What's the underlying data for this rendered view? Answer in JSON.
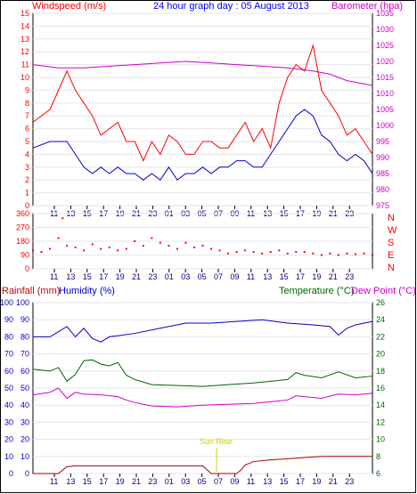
{
  "chart_data": [
    {
      "type": "line",
      "title": "24 hour graph day : 05 August 2013",
      "y_left_label": "Windspeed (m/s)",
      "y_right_label": "Barometer (hpa)",
      "y_left_ticks": [
        "0",
        "1",
        "2",
        "3",
        "4",
        "5",
        "6",
        "7",
        "8",
        "9",
        "10",
        "11",
        "12",
        "13",
        "14",
        "15"
      ],
      "y_right_ticks": [
        "975",
        "980",
        "985",
        "990",
        "995",
        "1000",
        "1005",
        "1010",
        "1015",
        "1020",
        "1025",
        "1030",
        "1035"
      ],
      "ylim_left": [
        0,
        15
      ],
      "ylim_right": [
        975,
        1035
      ],
      "x_ticks": [
        "11",
        "13",
        "15",
        "17",
        "19",
        "21",
        "23",
        "01",
        "03",
        "05",
        "07",
        "09",
        "11",
        "13",
        "15",
        "17",
        "19",
        "21",
        "23"
      ],
      "colors": {
        "gust": "#ff0000",
        "wind": "#0000cc",
        "barometer": "#cc00cc",
        "frame": "#000000"
      },
      "series": [
        {
          "name": "gust",
          "points": [
            [
              0,
              6.5
            ],
            [
              2,
              7.5
            ],
            [
              4,
              10.5
            ],
            [
              5,
              9
            ],
            [
              6,
              8
            ],
            [
              7,
              7
            ],
            [
              8,
              5.5
            ],
            [
              9,
              6
            ],
            [
              10,
              6.5
            ],
            [
              11,
              5
            ],
            [
              12,
              5
            ],
            [
              13,
              3.5
            ],
            [
              14,
              5
            ],
            [
              15,
              4
            ],
            [
              16,
              5.5
            ],
            [
              17,
              5
            ],
            [
              18,
              4
            ],
            [
              19,
              4
            ],
            [
              20,
              5
            ],
            [
              21,
              5
            ],
            [
              22,
              4.5
            ],
            [
              23,
              4.5
            ],
            [
              24,
              5.5
            ],
            [
              25,
              6.5
            ],
            [
              26,
              5
            ],
            [
              27,
              6
            ],
            [
              28,
              4.5
            ],
            [
              29,
              8
            ],
            [
              30,
              10
            ],
            [
              31,
              11
            ],
            [
              32,
              10.5
            ],
            [
              33,
              12.5
            ],
            [
              34,
              9
            ],
            [
              35,
              8
            ],
            [
              36,
              7
            ],
            [
              37,
              5.5
            ],
            [
              38,
              6
            ],
            [
              39,
              5
            ],
            [
              40,
              4
            ]
          ]
        },
        {
          "name": "wind",
          "points": [
            [
              0,
              4.5
            ],
            [
              2,
              5
            ],
            [
              4,
              5
            ],
            [
              5,
              4
            ],
            [
              6,
              3
            ],
            [
              7,
              2.5
            ],
            [
              8,
              3
            ],
            [
              9,
              2.5
            ],
            [
              10,
              3
            ],
            [
              11,
              2.5
            ],
            [
              12,
              2.5
            ],
            [
              13,
              2
            ],
            [
              14,
              2.5
            ],
            [
              15,
              2
            ],
            [
              16,
              3
            ],
            [
              17,
              2
            ],
            [
              18,
              2.5
            ],
            [
              19,
              2.5
            ],
            [
              20,
              3
            ],
            [
              21,
              2.5
            ],
            [
              22,
              3
            ],
            [
              23,
              3
            ],
            [
              24,
              3.5
            ],
            [
              25,
              3.5
            ],
            [
              26,
              3
            ],
            [
              27,
              3
            ],
            [
              28,
              4
            ],
            [
              29,
              5
            ],
            [
              30,
              6
            ],
            [
              31,
              7
            ],
            [
              32,
              7.5
            ],
            [
              33,
              7
            ],
            [
              34,
              5.5
            ],
            [
              35,
              5
            ],
            [
              36,
              4
            ],
            [
              37,
              3.5
            ],
            [
              38,
              4
            ],
            [
              39,
              3.5
            ],
            [
              40,
              2.5
            ]
          ]
        },
        {
          "name": "barometer",
          "points": [
            [
              0,
              1019
            ],
            [
              3,
              1018
            ],
            [
              6,
              1018
            ],
            [
              9,
              1018.5
            ],
            [
              12,
              1019
            ],
            [
              15,
              1019.5
            ],
            [
              18,
              1020
            ],
            [
              21,
              1019.5
            ],
            [
              24,
              1019
            ],
            [
              27,
              1018.5
            ],
            [
              30,
              1018
            ],
            [
              33,
              1017
            ],
            [
              35,
              1016
            ],
            [
              37,
              1014
            ],
            [
              39,
              1013
            ],
            [
              40,
              1012.5
            ]
          ]
        }
      ]
    },
    {
      "type": "scatter",
      "y_right_labels": [
        "N",
        "W",
        "S",
        "E",
        "N"
      ],
      "y_left_ticks": [
        "360",
        "270",
        "180",
        "90",
        "0"
      ],
      "ylim": [
        0,
        360
      ],
      "x_ticks": [
        "11",
        "13",
        "15",
        "17",
        "19",
        "21",
        "23",
        "01",
        "03",
        "05",
        "07",
        "09",
        "11",
        "13",
        "15",
        "17",
        "19",
        "21",
        "23"
      ],
      "colors": {
        "points": "#ff0000"
      },
      "series": [
        {
          "name": "direction",
          "points": [
            [
              0,
              120
            ],
            [
              1,
              110
            ],
            [
              2,
              130
            ],
            [
              3,
              200
            ],
            [
              3.5,
              330
            ],
            [
              4,
              150
            ],
            [
              5,
              140
            ],
            [
              6,
              120
            ],
            [
              7,
              160
            ],
            [
              8,
              130
            ],
            [
              9,
              140
            ],
            [
              10,
              120
            ],
            [
              11,
              130
            ],
            [
              12,
              180
            ],
            [
              13,
              150
            ],
            [
              14,
              200
            ],
            [
              15,
              170
            ],
            [
              16,
              150
            ],
            [
              17,
              130
            ],
            [
              18,
              170
            ],
            [
              19,
              140
            ],
            [
              20,
              150
            ],
            [
              21,
              130
            ],
            [
              22,
              120
            ],
            [
              23,
              100
            ],
            [
              24,
              110
            ],
            [
              25,
              120
            ],
            [
              26,
              110
            ],
            [
              27,
              100
            ],
            [
              28,
              110
            ],
            [
              29,
              120
            ],
            [
              30,
              100
            ],
            [
              31,
              110
            ],
            [
              32,
              110
            ],
            [
              33,
              100
            ],
            [
              34,
              90
            ],
            [
              35,
              100
            ],
            [
              36,
              90
            ],
            [
              37,
              100
            ],
            [
              38,
              95
            ],
            [
              39,
              100
            ],
            [
              40,
              90
            ]
          ]
        }
      ]
    },
    {
      "type": "line",
      "left_labels": [
        "Rainfall (mm)",
        "Humidity (%)"
      ],
      "right_labels": [
        "Temperature (°C)",
        "Dew Point (°C)"
      ],
      "y_rain_ticks": [
        "0",
        "10",
        "20",
        "30",
        "40",
        "50",
        "60",
        "70",
        "80",
        "90",
        "100"
      ],
      "y_hum_ticks": [
        "0",
        "10",
        "20",
        "30",
        "40",
        "50",
        "60",
        "70",
        "80",
        "90",
        "100"
      ],
      "y_temp_ticks": [
        "6",
        "8",
        "10",
        "12",
        "14",
        "16",
        "18",
        "20",
        "22",
        "24",
        "26"
      ],
      "annotation": "Sun Rise",
      "x_ticks": [
        "11",
        "13",
        "15",
        "17",
        "19",
        "21",
        "23",
        "01",
        "03",
        "05",
        "07",
        "09",
        "11",
        "13",
        "15",
        "17",
        "19",
        "21",
        "23"
      ],
      "colors": {
        "humidity": "#0000cc",
        "temperature": "#006600",
        "dewpoint": "#cc00cc",
        "rainfall": "#aa0000",
        "annotation": "#cccc00"
      },
      "series": [
        {
          "name": "humidity",
          "points": [
            [
              0,
              80
            ],
            [
              2,
              80
            ],
            [
              3,
              83
            ],
            [
              4,
              86
            ],
            [
              5,
              80
            ],
            [
              6,
              85
            ],
            [
              7,
              79
            ],
            [
              8,
              77
            ],
            [
              9,
              80
            ],
            [
              12,
              82
            ],
            [
              15,
              85
            ],
            [
              18,
              88
            ],
            [
              21,
              88
            ],
            [
              24,
              89
            ],
            [
              27,
              90
            ],
            [
              30,
              88
            ],
            [
              33,
              87
            ],
            [
              35,
              86
            ],
            [
              36,
              81
            ],
            [
              37,
              85
            ],
            [
              38,
              87
            ],
            [
              40,
              89
            ]
          ]
        },
        {
          "name": "temperature",
          "points": [
            [
              0,
              18.2
            ],
            [
              2,
              18
            ],
            [
              3,
              18.4
            ],
            [
              4,
              16.8
            ],
            [
              5,
              17.6
            ],
            [
              6,
              19.2
            ],
            [
              7,
              19.3
            ],
            [
              8,
              18.8
            ],
            [
              9,
              18.6
            ],
            [
              10,
              19.0
            ],
            [
              11,
              17.5
            ],
            [
              12,
              17
            ],
            [
              14,
              16.4
            ],
            [
              17,
              16.3
            ],
            [
              20,
              16.2
            ],
            [
              23,
              16.4
            ],
            [
              26,
              16.6
            ],
            [
              28,
              16.8
            ],
            [
              30,
              17
            ],
            [
              31,
              17.8
            ],
            [
              32,
              17.5
            ],
            [
              34,
              17.2
            ],
            [
              36,
              17.9
            ],
            [
              38,
              17.2
            ],
            [
              40,
              17.4
            ]
          ]
        },
        {
          "name": "dewpoint",
          "points": [
            [
              0,
              15.2
            ],
            [
              2,
              15.5
            ],
            [
              3,
              16.0
            ],
            [
              4,
              14.8
            ],
            [
              5,
              15.5
            ],
            [
              6,
              15.3
            ],
            [
              8,
              15.2
            ],
            [
              10,
              15.0
            ],
            [
              11,
              14.6
            ],
            [
              12,
              14.3
            ],
            [
              14,
              13.9
            ],
            [
              17,
              13.8
            ],
            [
              20,
              14.0
            ],
            [
              23,
              14.1
            ],
            [
              26,
              14.2
            ],
            [
              28,
              14.4
            ],
            [
              30,
              14.6
            ],
            [
              31,
              15.1
            ],
            [
              32,
              15.0
            ],
            [
              34,
              14.8
            ],
            [
              36,
              15.3
            ],
            [
              38,
              15.2
            ],
            [
              40,
              15.4
            ]
          ]
        },
        {
          "name": "rainfall",
          "points": [
            [
              0,
              0
            ],
            [
              3,
              0
            ],
            [
              4,
              4
            ],
            [
              5,
              4.5
            ],
            [
              6,
              4.5
            ],
            [
              10,
              4.5
            ],
            [
              18,
              4.5
            ],
            [
              20,
              4.5
            ],
            [
              21,
              0
            ],
            [
              24,
              0
            ],
            [
              24.5,
              2
            ],
            [
              25,
              5
            ],
            [
              26,
              7
            ],
            [
              28,
              8
            ],
            [
              31,
              9
            ],
            [
              34,
              10
            ],
            [
              37,
              10
            ],
            [
              40,
              10
            ]
          ]
        }
      ]
    }
  ]
}
